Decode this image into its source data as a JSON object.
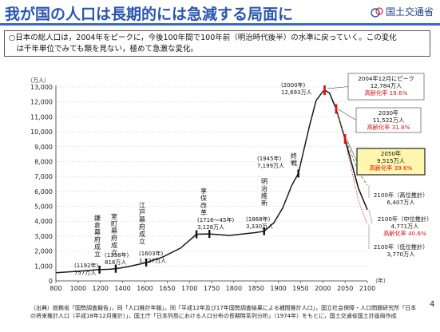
{
  "header": {
    "title": "我が国の人口は長期的には急減する局面に",
    "org": "国土交通省"
  },
  "summary": {
    "line1": "○日本の総人口は，2004年をピークに，今後100年間で100年前（明治時代後半）の水準に戻っていく。この変化",
    "line2": "　は千年単位でみても類を見ない，極めて急激な変化。"
  },
  "colors": {
    "title": "#2a56b0",
    "rule": "#3a68c4",
    "red": "#dd1111",
    "highlight": "#fff6b0"
  },
  "chart_data": {
    "type": "line",
    "y_unit_label": "（万人）",
    "x_unit_label": "（年）",
    "xlim": [
      800,
      2100
    ],
    "ylim": [
      0,
      13000
    ],
    "x_ticks": [
      800,
      1000,
      1200,
      1400,
      1600,
      1650,
      1700,
      1750,
      1800,
      1850,
      1900,
      1950,
      2000,
      2050,
      2100
    ],
    "y_ticks": [
      0,
      1000,
      2000,
      3000,
      4000,
      5000,
      6000,
      7000,
      8000,
      9000,
      10000,
      11000,
      12000,
      13000
    ],
    "y_tick_labels": [
      "0",
      "1,000",
      "2,000",
      "3,000",
      "4,000",
      "5,000",
      "6,000",
      "7,000",
      "8,000",
      "9,000",
      "10,000",
      "11,000",
      "12,000",
      "13,000"
    ],
    "series": [
      {
        "values": [
          [
            800,
            551
          ],
          [
            1000,
            650
          ],
          [
            1192,
            757
          ],
          [
            1280,
            780
          ],
          [
            1338,
            818
          ],
          [
            1450,
            960
          ],
          [
            1603,
            1227
          ],
          [
            1640,
            1600
          ],
          [
            1680,
            2200
          ],
          [
            1716,
            3128
          ],
          [
            1745,
            3150
          ],
          [
            1790,
            3050
          ],
          [
            1846,
            3230
          ],
          [
            1868,
            3330
          ],
          [
            1890,
            3900
          ],
          [
            1910,
            4900
          ],
          [
            1930,
            6400
          ],
          [
            1945,
            7199
          ],
          [
            1970,
            10400
          ],
          [
            1985,
            12100
          ],
          [
            2000,
            12693
          ],
          [
            2004,
            12784
          ]
        ]
      },
      {
        "values": [
          [
            2004,
            12784
          ],
          [
            2015,
            12600
          ],
          [
            2030,
            11522
          ],
          [
            2050,
            9515
          ],
          [
            2080,
            6200
          ],
          [
            2100,
            4771
          ]
        ]
      },
      {
        "values": [
          [
            2030,
            11522
          ],
          [
            2050,
            9600
          ],
          [
            2080,
            7300
          ],
          [
            2100,
            6407
          ]
        ]
      },
      {
        "values": [
          [
            2030,
            11522
          ],
          [
            2050,
            9400
          ],
          [
            2080,
            5400
          ],
          [
            2100,
            3770
          ]
        ]
      }
    ],
    "annotations": [
      {
        "id": "peak2004",
        "label_lines": [
          "2004年12月にピーク",
          "12,784万人"
        ],
        "aging": "高齢化率 19.6%"
      },
      {
        "id": "y2000",
        "label_lines": [
          "(2000年)",
          "12,693万人"
        ]
      },
      {
        "id": "y2030",
        "label_lines": [
          "2030年",
          "11,522万人"
        ],
        "aging": "高齢化率 31.8%"
      },
      {
        "id": "y2050",
        "label_lines": [
          "2050年",
          "9,515万人"
        ],
        "aging": "高齢化率 39.6%"
      },
      {
        "id": "high",
        "label_lines": [
          "2100年（高位推計）",
          "6,407万人"
        ]
      },
      {
        "id": "mid",
        "label_lines": [
          "2100年（中位推計）",
          "4,771万人"
        ],
        "aging": "高齢化率 40.6%"
      },
      {
        "id": "low",
        "label_lines": [
          "2100年（低位推計）",
          "3,770万人"
        ]
      },
      {
        "id": "y1945",
        "label_lines": [
          "(1945年)",
          "7,199万人"
        ]
      },
      {
        "id": "y1868",
        "label_lines": [
          "(1868年)",
          "3,330万人"
        ]
      },
      {
        "id": "y1716",
        "label_lines": [
          "(1716～45年)",
          "3,128万人"
        ]
      },
      {
        "id": "y1603",
        "label_lines": [
          "(1603年)",
          "1,227万人"
        ]
      },
      {
        "id": "y1338",
        "label_lines": [
          "(1338年)",
          "818万人"
        ]
      },
      {
        "id": "y1192",
        "label_lines": [
          "(1192年)",
          "757万人"
        ]
      }
    ],
    "eras": [
      {
        "id": "kamakura",
        "text": "鎌倉幕府成立"
      },
      {
        "id": "muromachi",
        "text": "室町幕府成立"
      },
      {
        "id": "edo",
        "text": "江戸幕府成立"
      },
      {
        "id": "kyoho",
        "text": "享保改革"
      },
      {
        "id": "meiji",
        "text": "明治維新"
      },
      {
        "id": "shusen",
        "text": "終戦"
      }
    ]
  },
  "source": {
    "line1": "（出典）総務省「国勢調査報告」，同「人口推計年報」，同「平成12年及び17年国勢調査結果による補間推計人口」，国立社会保障・人口問題研究所「日本",
    "line2": "の将来推計人口（平成18年12月推計）」，国土庁「日本列島における人口分布の長期時系列分析」（1974年）をもとに，国土交通省国土計画局作成"
  },
  "page_number": "4"
}
